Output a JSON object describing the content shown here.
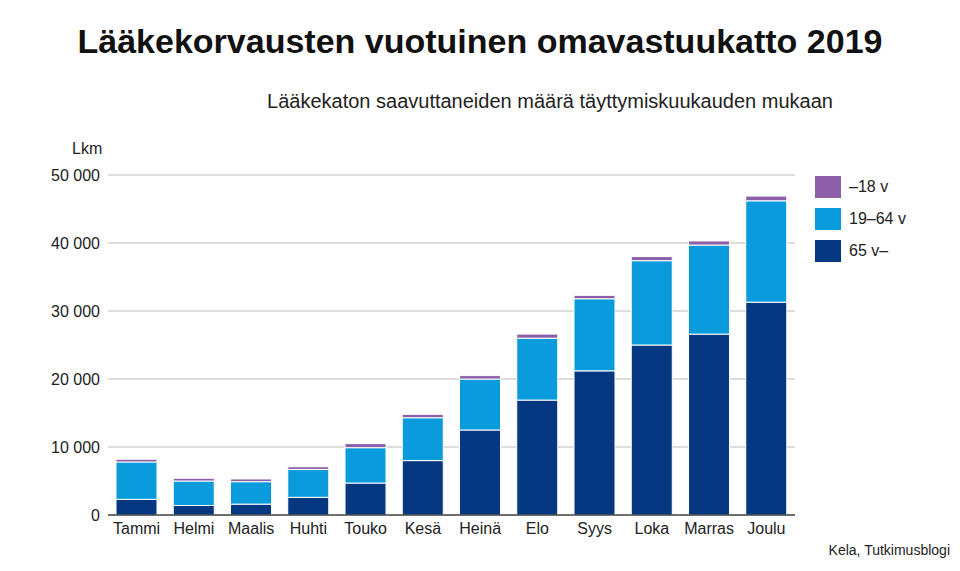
{
  "chart_data": {
    "type": "bar",
    "title": "Lääkekorvausten vuotuinen omavastuukatto 2019",
    "subtitle": "Lääkekaton saavuttaneiden määrä täyttymiskuukauden mukaan",
    "y_label": "Lkm",
    "source": "Kela, Tutkimusblogi",
    "stacked": true,
    "grid": true,
    "legend": "upper right",
    "categories": [
      "Tammi",
      "Helmi",
      "Maalis",
      "Huhti",
      "Touko",
      "Kesä",
      "Heinä",
      "Elo",
      "Syys",
      "Loka",
      "Marras",
      "Joulu"
    ],
    "series": [
      {
        "name": "65 v–",
        "color": "#063781",
        "values": [
          2300,
          1400,
          1600,
          2600,
          4700,
          8000,
          12500,
          16900,
          21200,
          25000,
          26600,
          31300
        ]
      },
      {
        "name": "19–64 v",
        "color": "#0a9bdc",
        "values": [
          5500,
          3600,
          3300,
          4100,
          5200,
          6300,
          7500,
          9100,
          10600,
          12400,
          13100,
          14900
        ]
      },
      {
        "name": "–18 v",
        "color": "#8c5fa8",
        "values": [
          400,
          400,
          400,
          400,
          600,
          500,
          500,
          600,
          500,
          600,
          600,
          700
        ]
      }
    ],
    "ylim": [
      0,
      50000
    ],
    "yticks": [
      {
        "value": 0,
        "label": "0"
      },
      {
        "value": 10000,
        "label": "10 000"
      },
      {
        "value": 20000,
        "label": "20 000"
      },
      {
        "value": 30000,
        "label": "30 000"
      },
      {
        "value": 40000,
        "label": "40 000"
      },
      {
        "value": 50000,
        "label": "50 000"
      }
    ]
  }
}
